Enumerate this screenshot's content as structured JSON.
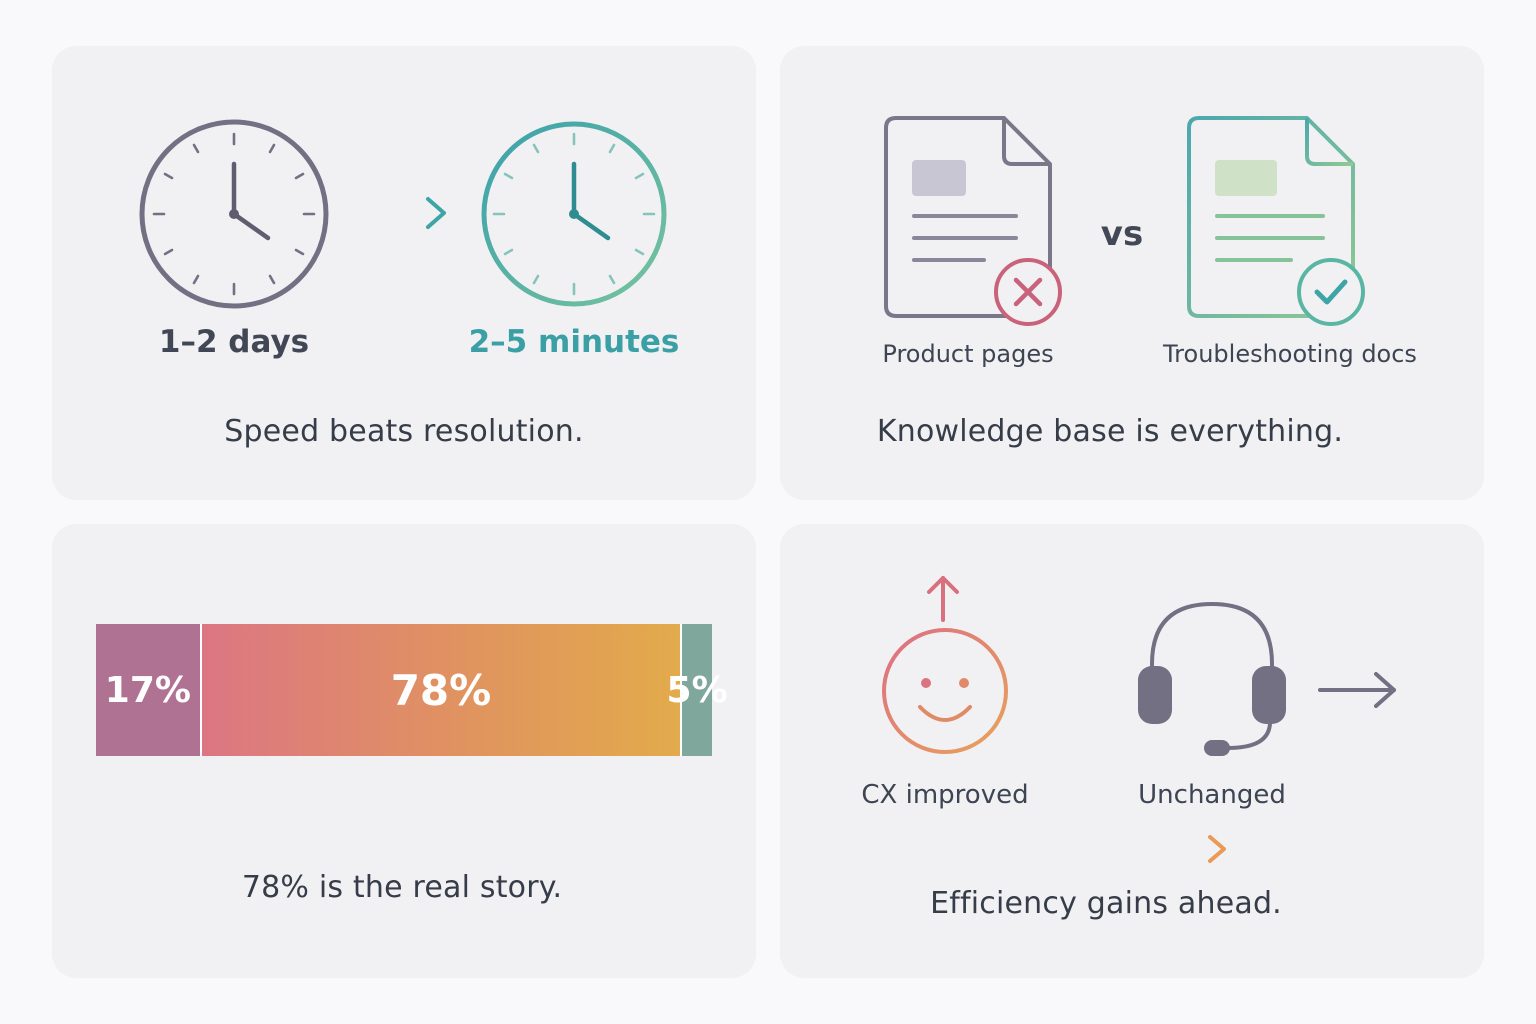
{
  "colors": {
    "slate": "#737083",
    "teal": "#3ea5a6",
    "sage": "#8cc694",
    "rose": "#d9707e",
    "amber": "#e2ab51",
    "plum": "#b07292",
    "green_gray": "#7fa79b",
    "orange_dashed": "#e89063"
  },
  "speed": {
    "before_label": "1–2 days",
    "after_label": "2–5 minutes",
    "caption": "Speed beats resolution."
  },
  "knowledge": {
    "left_label": "Product pages",
    "vs_label": "vs",
    "right_label": "Troubleshooting docs",
    "caption": "Knowledge base is everything.",
    "left_icon": "document-x-icon",
    "right_icon": "document-check-icon"
  },
  "split": {
    "segments": [
      {
        "label": "17%",
        "value": 17
      },
      {
        "label": "78%",
        "value": 78
      },
      {
        "label": "5%",
        "value": 5
      }
    ],
    "caption": "78% is the real story."
  },
  "cx": {
    "left_label": "CX improved",
    "right_label": "Unchanged",
    "caption": "Efficiency gains ahead.",
    "left_icon": "smiley-icon",
    "right_icon": "headset-icon"
  }
}
